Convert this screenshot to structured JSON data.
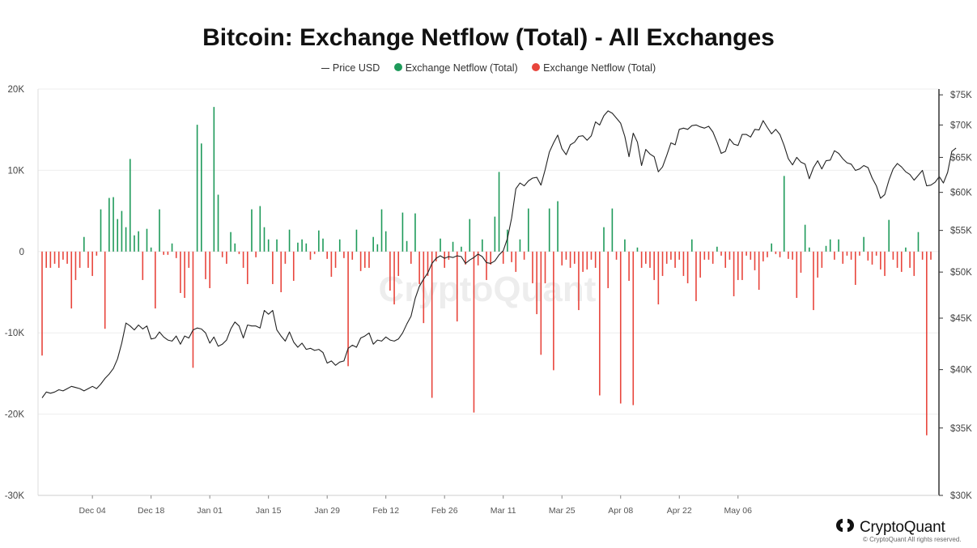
{
  "title": "Bitcoin: Exchange Netflow (Total) - All Exchanges",
  "legend": {
    "price": "Price USD",
    "inflow": "Exchange Netflow (Total)",
    "outflow": "Exchange Netflow (Total)"
  },
  "colors": {
    "price": "#222222",
    "inflow": "#1e9a5a",
    "outflow": "#e8453c",
    "grid": "#eeeeee",
    "axis": "#333333"
  },
  "watermark": "CryptoQuant",
  "brand": {
    "name": "CryptoQuant",
    "copyright": "© CryptoQuant All rights reserved."
  },
  "chart_data": {
    "type": "bar",
    "x_start": "Nov 22",
    "x_end": "May 16",
    "left_axis": {
      "ticks": [
        "20K",
        "10K",
        "0",
        "-10K",
        "-20K",
        "-30K"
      ],
      "range": [
        -30000,
        20000
      ]
    },
    "right_axis": {
      "scale": "log",
      "ticks": [
        "$75K",
        "$70K",
        "$65K",
        "$60K",
        "$55K",
        "$50K",
        "$45K",
        "$40K",
        "$35K",
        "$30K"
      ],
      "range": [
        30000,
        76000
      ]
    },
    "x_ticks": [
      "Dec 04",
      "Dec 18",
      "Jan 01",
      "Jan 15",
      "Jan 29",
      "Feb 12",
      "Feb 26",
      "Mar 11",
      "Mar 25",
      "Apr 08",
      "Apr 22",
      "May 06"
    ],
    "netflow": [
      -12800,
      -2000,
      -2000,
      -1500,
      -2000,
      -1000,
      -1500,
      -7000,
      -3500,
      -2000,
      1800,
      -2000,
      -3000,
      -500,
      5200,
      -9500,
      6600,
      6700,
      4000,
      5000,
      3000,
      11400,
      2000,
      2500,
      -3500,
      2800,
      500,
      -7000,
      5200,
      -400,
      -400,
      1000,
      -800,
      -5100,
      -5700,
      -2000,
      -14300,
      15600,
      13300,
      -3400,
      -4500,
      17800,
      7000,
      -700,
      -1500,
      2400,
      1000,
      -300,
      -2000,
      -4000,
      5200,
      -700,
      5600,
      3000,
      1500,
      -4000,
      1500,
      -5000,
      -1500,
      2700,
      -3600,
      1100,
      1500,
      1000,
      -1000,
      -300,
      2600,
      1600,
      -900,
      -3100,
      -2000,
      1500,
      -800,
      -14100,
      -1000,
      2700,
      -2400,
      -2000,
      -2000,
      1800,
      900,
      5200,
      2500,
      -4800,
      -6500,
      -3000,
      4800,
      1300,
      -1500,
      4700,
      -4000,
      -8800,
      -3000,
      -18000,
      -1200,
      1600,
      -2000,
      -1000,
      1200,
      -8600,
      600,
      -1600,
      4000,
      -19800,
      -1700,
      1500,
      -3500,
      -1600,
      4300,
      9800,
      -1500,
      2700,
      -1300,
      -2500,
      1500,
      -1000,
      5300,
      -3900,
      -7700,
      -12700,
      -3900,
      5300,
      -14600,
      6200,
      -1700,
      -1000,
      -2000,
      -1500,
      -7200,
      -2500,
      -2200,
      -1000,
      -2000,
      -17700,
      3000,
      -4500,
      5300,
      -1000,
      -18700,
      1500,
      -3600,
      -18900,
      500,
      -2000,
      -1500,
      -2000,
      -3500,
      -6500,
      -3000,
      -1500,
      -1000,
      -2000,
      -1000,
      -3000,
      -3900,
      1500,
      -6100,
      -3200,
      -1000,
      -1000,
      -1500,
      600,
      -500,
      -2000,
      -1000,
      -5500,
      -3500,
      -3500,
      -500,
      -1000,
      -2300,
      -4700,
      -1200,
      -700,
      1000,
      -300,
      -700,
      9300,
      -900,
      -1000,
      -5700,
      -2600,
      3300,
      500,
      -7200,
      -3200,
      -2000,
      700,
      1500,
      -1000,
      1500,
      -1500,
      -500,
      -1000,
      -4100,
      -500,
      1800,
      -1100,
      -1600,
      -500,
      -2200,
      -3000,
      3900,
      -1000,
      -2000,
      -2500,
      500,
      -2000,
      -3000,
      2400,
      -1000,
      -22600,
      -1000
    ],
    "price_series": [
      37500,
      38000,
      37900,
      38000,
      38200,
      38100,
      38300,
      38500,
      38400,
      38300,
      38100,
      38300,
      38500,
      38300,
      38700,
      39200,
      39600,
      40100,
      41000,
      42500,
      44500,
      44200,
      43800,
      44300,
      43900,
      44200,
      42900,
      43000,
      43600,
      43100,
      42800,
      42700,
      43200,
      42400,
      43200,
      43000,
      43800,
      44000,
      43900,
      43500,
      42500,
      43100,
      42200,
      42400,
      42800,
      43900,
      44600,
      44200,
      43000,
      44300,
      44200,
      44200,
      44000,
      45800,
      45400,
      45800,
      43800,
      43200,
      42700,
      43600,
      42600,
      42100,
      42500,
      41900,
      42000,
      41800,
      41900,
      41600,
      40600,
      40800,
      40400,
      40700,
      40800,
      42000,
      42300,
      42100,
      43000,
      43200,
      43500,
      42400,
      42800,
      42700,
      43100,
      42800,
      42700,
      42900,
      43500,
      44400,
      45200,
      47100,
      48400,
      49200,
      49900,
      51000,
      51600,
      51900,
      51600,
      51800,
      51700,
      51900,
      51800,
      51000,
      51400,
      51700,
      52100,
      51800,
      51100,
      51000,
      51300,
      52000,
      52500,
      54000,
      56600,
      60500,
      61300,
      60900,
      61600,
      62000,
      62100,
      61000,
      63200,
      65800,
      67200,
      68400,
      66300,
      65400,
      66900,
      67300,
      68200,
      68300,
      67600,
      68300,
      70500,
      70000,
      71500,
      72300,
      71900,
      71100,
      70300,
      68200,
      65100,
      68700,
      67300,
      63800,
      66200,
      65500,
      65100,
      62900,
      63600,
      65300,
      67200,
      66900,
      69300,
      69500,
      69300,
      69900,
      70000,
      69700,
      69500,
      69800,
      68900,
      67300,
      65600,
      65900,
      67800,
      67000,
      66800,
      68500,
      68500,
      68100,
      69300,
      69200,
      70700,
      69600,
      68600,
      69300,
      68500,
      66800,
      64800,
      63900,
      65000,
      64300,
      64000,
      61900,
      63500,
      64500,
      63300,
      64500,
      64600,
      66000,
      65600,
      64800,
      64200,
      64000,
      63100,
      63300,
      63800,
      63500,
      62000,
      60900,
      59200,
      59700,
      61700,
      63300,
      64100,
      63600,
      62900,
      62500,
      61700,
      62400,
      63100,
      60900,
      61000,
      61400,
      62200,
      61300,
      62800,
      65900,
      66400
    ]
  }
}
